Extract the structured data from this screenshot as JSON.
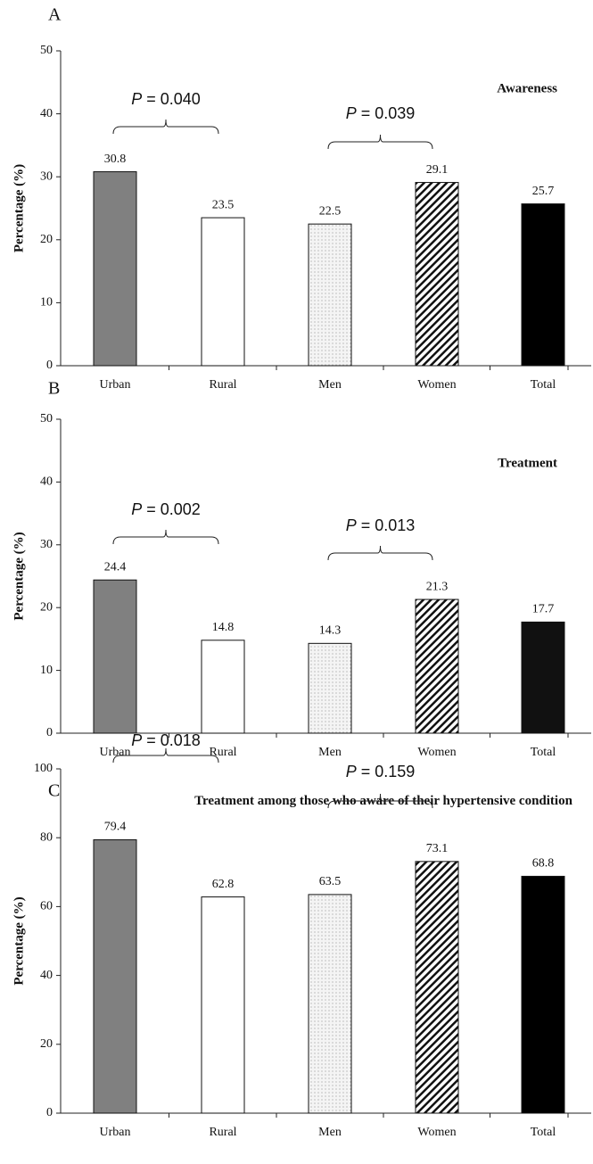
{
  "chart_data": [
    {
      "type": "bar",
      "panel": "A",
      "title": "Awareness",
      "ylabel": "Percentage (%)",
      "categories": [
        "Urban",
        "Rural",
        "Men",
        "Women",
        "Total"
      ],
      "values": [
        30.8,
        23.5,
        22.5,
        29.1,
        25.7
      ],
      "colors": [
        "#808080",
        "#ffffff",
        "#f4f4f4",
        "#ffffff",
        "#000000"
      ],
      "patterns": [
        "solid",
        "solid",
        "dots",
        "hatch",
        "solid"
      ],
      "ylim": [
        0,
        50
      ],
      "yticks": [
        0,
        10,
        20,
        30,
        40,
        50
      ],
      "annotations": [
        {
          "italic": "P",
          "text": "= 0.040"
        },
        {
          "italic": "P",
          "text": "= 0.039"
        }
      ]
    },
    {
      "type": "bar",
      "panel": "B",
      "title": "Treatment",
      "ylabel": "Percentage (%)",
      "categories": [
        "Urban",
        "Rural",
        "Men",
        "Women",
        "Total"
      ],
      "values": [
        24.4,
        14.8,
        14.3,
        21.3,
        17.7
      ],
      "colors": [
        "#808080",
        "#ffffff",
        "#f4f4f4",
        "#ffffff",
        "#111111"
      ],
      "patterns": [
        "solid",
        "solid",
        "dots",
        "hatch",
        "solid"
      ],
      "ylim": [
        0,
        50
      ],
      "yticks": [
        0,
        10,
        20,
        30,
        40,
        50
      ],
      "annotations": [
        {
          "italic": "P",
          "text": "= 0.002"
        },
        {
          "italic": "P",
          "text": "= 0.013"
        }
      ]
    },
    {
      "type": "bar",
      "panel": "C",
      "title": "Treatment among those who aware of their hypertensive condition",
      "ylabel": "Percentage (%)",
      "categories": [
        "Urban",
        "Rural",
        "Men",
        "Women",
        "Total"
      ],
      "values": [
        79.4,
        62.8,
        63.5,
        73.1,
        68.8
      ],
      "colors": [
        "#808080",
        "#ffffff",
        "#f4f4f4",
        "#ffffff",
        "#000000"
      ],
      "patterns": [
        "solid",
        "solid",
        "dots",
        "hatch",
        "solid"
      ],
      "ylim": [
        0,
        100
      ],
      "yticks": [
        0,
        20,
        40,
        60,
        80,
        100
      ],
      "annotations": [
        {
          "italic": "P",
          "text": "= 0.018"
        },
        {
          "italic": "P",
          "text": "= 0.159"
        }
      ]
    }
  ]
}
